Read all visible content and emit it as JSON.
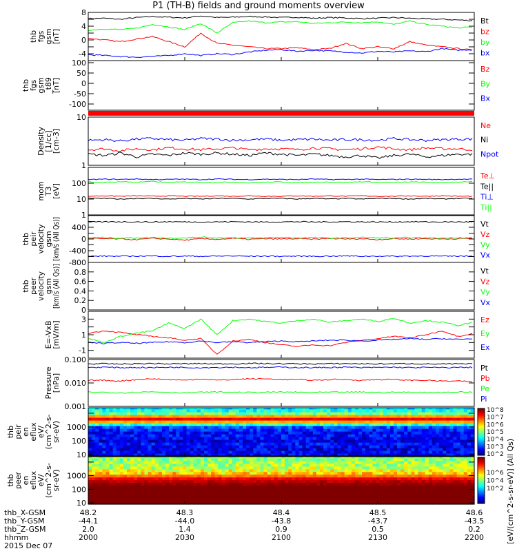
{
  "title": "P1 (TH-B) fields and ground moments overview",
  "chart_data": [
    {
      "type": "line",
      "id": "fgs",
      "ylabel_lines": [
        "thb",
        "fgs",
        "gsm",
        "[nT]"
      ],
      "ylim": [
        -6,
        8
      ],
      "yscale": "linear",
      "yticks": [
        -6,
        -4,
        -2,
        0,
        2,
        4,
        6,
        8
      ],
      "series": [
        {
          "name": "Bt",
          "color": "#000000",
          "values": [
            6.2,
            6.3,
            6.0,
            6.5,
            6.8,
            6.6,
            6.4,
            7.0,
            6.5,
            6.6,
            6.8,
            6.7,
            6.5,
            6.6,
            6.3,
            6.5,
            6.4,
            6.2,
            6.3,
            6.5,
            6.3,
            6.1,
            6.0,
            5.8,
            5.6
          ]
        },
        {
          "name": "bz",
          "color": "#ff0000",
          "values": [
            0.5,
            0.0,
            -0.5,
            0.3,
            1.0,
            -0.5,
            -2.0,
            2.0,
            -1.0,
            -1.5,
            -2.0,
            -2.5,
            -2.5,
            -2.3,
            -2.8,
            -2.5,
            -1.0,
            -2.5,
            -2.0,
            -2.5,
            -0.5,
            -1.5,
            -2.0,
            -2.5,
            -3.0
          ]
        },
        {
          "name": "by",
          "color": "#00ff00",
          "values": [
            2.8,
            3.2,
            3.0,
            3.4,
            4.5,
            3.8,
            3.0,
            4.8,
            2.0,
            5.0,
            5.5,
            5.0,
            5.2,
            5.3,
            4.8,
            5.0,
            5.2,
            5.0,
            5.3,
            4.5,
            5.5,
            4.5,
            4.0,
            3.5,
            3.8
          ]
        },
        {
          "name": "bx",
          "color": "#0000ff",
          "values": [
            -4.3,
            -4.5,
            -4.8,
            -5.0,
            -4.8,
            -4.5,
            -4.0,
            -4.5,
            -4.0,
            -4.2,
            -3.5,
            -3.0,
            -2.8,
            -3.3,
            -3.0,
            -3.2,
            -3.5,
            -3.8,
            -3.3,
            -3.5,
            -3.2,
            -3.4,
            -2.5,
            -3.0,
            -2.8
          ]
        }
      ]
    },
    {
      "type": "line",
      "id": "fgs_t89",
      "ylabel_lines": [
        "thb",
        "fgs",
        "gsm",
        "_t89",
        "[nT]"
      ],
      "ylim": [
        -130,
        110
      ],
      "yscale": "linear",
      "yticks": [
        -100,
        -50,
        0,
        50,
        100
      ],
      "series": [
        {
          "name": "Bz",
          "color": "#ff0000",
          "values": []
        },
        {
          "name": "By",
          "color": "#00ff00",
          "values": []
        },
        {
          "name": "Bx",
          "color": "#0000ff",
          "values": []
        }
      ]
    },
    {
      "type": "line",
      "id": "density",
      "ylabel_lines": [
        "Density",
        "[1/cc]",
        "[cm-3]"
      ],
      "ylim": [
        1,
        10
      ],
      "yscale": "log",
      "yticks": [
        1,
        10
      ],
      "series": [
        {
          "name": "Ne",
          "color": "#ff0000",
          "values": [
            2.1,
            2.2,
            2.0,
            2.2,
            2.1,
            2.3,
            2.2,
            2.1,
            2.2,
            2.3,
            2.1,
            2.2,
            2.2,
            2.1,
            2.3,
            2.2,
            2.1,
            2.2,
            2.4,
            2.2,
            2.1,
            2.3,
            2.2,
            2.2,
            2.1
          ]
        },
        {
          "name": "Ni",
          "color": "#000000",
          "values": [
            1.7,
            1.6,
            1.8,
            1.5,
            1.7,
            1.6,
            1.8,
            1.7,
            1.8,
            1.7,
            1.6,
            1.8,
            1.7,
            1.6,
            1.7,
            1.6,
            1.5,
            1.6,
            1.4,
            1.6,
            1.7,
            1.5,
            1.6,
            1.7,
            1.7
          ]
        },
        {
          "name": "Npot",
          "color": "#0000ff",
          "values": [
            3.3,
            3.4,
            3.2,
            3.5,
            3.6,
            3.4,
            3.3,
            3.6,
            3.5,
            3.3,
            3.4,
            3.5,
            3.3,
            3.4,
            3.5,
            3.3,
            3.4,
            3.4,
            3.3,
            3.6,
            3.4,
            3.3,
            3.4,
            3.5,
            3.5
          ]
        }
      ]
    },
    {
      "type": "line",
      "id": "temps",
      "ylabel_lines": [
        "mom",
        "T3",
        "[eV]"
      ],
      "ylim": [
        1,
        1000
      ],
      "yscale": "log",
      "yticks": [
        1,
        10,
        100,
        1000
      ],
      "series": [
        {
          "name": "Te⊥",
          "color": "#ff0000",
          "values": [
            15,
            16,
            15,
            16,
            15,
            16,
            15,
            15,
            16,
            15,
            16,
            15,
            15,
            16,
            15,
            16,
            15,
            16,
            15,
            15,
            16,
            15,
            16,
            15,
            15
          ]
        },
        {
          "name": "Te||",
          "color": "#000000",
          "values": [
            11,
            11,
            10,
            11,
            11,
            10,
            11,
            10,
            11,
            11,
            10,
            11,
            11,
            10,
            11,
            10,
            11,
            10,
            11,
            11,
            10,
            11,
            10,
            11,
            11
          ]
        },
        {
          "name": "Ti⊥",
          "color": "#0000ff",
          "values": [
            170,
            180,
            175,
            185,
            170,
            175,
            180,
            170,
            185,
            175,
            170,
            180,
            175,
            170,
            185,
            170,
            175,
            180,
            170,
            175,
            180,
            175,
            170,
            180,
            175
          ]
        },
        {
          "name": "Ti||",
          "color": "#00ff00",
          "values": [
            120,
            110,
            125,
            115,
            130,
            110,
            120,
            115,
            110,
            120,
            105,
            115,
            120,
            110,
            115,
            120,
            110,
            125,
            115,
            110,
            120,
            115,
            110,
            120,
            130
          ]
        }
      ]
    },
    {
      "type": "line",
      "id": "peir_velocity",
      "ylabel_lines": [
        "thb",
        "peir",
        "velocity",
        "gsm",
        "[km/s (All Qs)]"
      ],
      "ylim": [
        -800,
        800
      ],
      "yscale": "linear",
      "yticks": [
        -800,
        -600,
        -400,
        -200,
        0,
        200,
        400,
        600,
        800
      ],
      "series": [
        {
          "name": "Vt",
          "color": "#000000",
          "values": [
            580,
            585,
            590,
            585,
            580,
            590,
            585,
            580,
            585,
            590,
            585,
            580,
            585,
            590,
            580,
            585,
            590,
            585,
            580,
            585,
            590,
            585,
            580,
            585,
            585
          ]
        },
        {
          "name": "Vz",
          "color": "#ff0000",
          "values": [
            20,
            10,
            0,
            -20,
            20,
            0,
            -40,
            10,
            -10,
            20,
            -10,
            10,
            0,
            10,
            -10,
            20,
            0,
            10,
            -20,
            10,
            0,
            10,
            0,
            10,
            20
          ]
        },
        {
          "name": "Vy",
          "color": "#00ff00",
          "values": [
            40,
            50,
            30,
            40,
            50,
            30,
            40,
            60,
            40,
            50,
            30,
            40,
            60,
            40,
            50,
            30,
            40,
            50,
            40,
            30,
            50,
            40,
            30,
            50,
            40
          ]
        },
        {
          "name": "Vx",
          "color": "#0000ff",
          "values": [
            -590,
            -585,
            -590,
            -585,
            -580,
            -590,
            -585,
            -590,
            -585,
            -580,
            -590,
            -585,
            -590,
            -585,
            -590,
            -585,
            -580,
            -590,
            -585,
            -590,
            -585,
            -580,
            -590,
            -585,
            -585
          ]
        }
      ]
    },
    {
      "type": "line",
      "id": "peer_velocity",
      "ylabel_lines": [
        "thb",
        "peer",
        "velocity",
        "gsm",
        "[km/s (All Qs)]"
      ],
      "ylim": [
        0,
        1
      ],
      "yscale": "linear",
      "yticks": [
        0.0,
        0.2,
        0.4,
        0.6,
        0.8,
        1.0
      ],
      "series": [
        {
          "name": "Vt",
          "color": "#000000",
          "values": []
        },
        {
          "name": "Vz",
          "color": "#ff0000",
          "values": []
        },
        {
          "name": "Vy",
          "color": "#00ff00",
          "values": []
        },
        {
          "name": "Vx",
          "color": "#0000ff",
          "values": []
        }
      ]
    },
    {
      "type": "line",
      "id": "efield",
      "ylabel_lines": [
        "E=-VxB",
        "[mV/m]"
      ],
      "ylim": [
        -2,
        4
      ],
      "yscale": "linear",
      "yticks": [
        -2,
        -1,
        0,
        1,
        2,
        3,
        4
      ],
      "series": [
        {
          "name": "Ez",
          "color": "#ff0000",
          "values": [
            1.2,
            1.5,
            1.3,
            1.0,
            0.8,
            0.6,
            0.3,
            0.5,
            -1.5,
            0.2,
            0.4,
            0.0,
            -0.3,
            -0.5,
            -0.3,
            -0.4,
            0.0,
            0.3,
            0.5,
            0.8,
            0.6,
            1.0,
            1.5,
            0.8,
            1.2
          ]
        },
        {
          "name": "Ey",
          "color": "#00ff00",
          "values": [
            0.5,
            0.0,
            0.8,
            1.2,
            1.5,
            2.5,
            1.8,
            3.0,
            1.0,
            2.8,
            3.0,
            2.7,
            2.5,
            2.8,
            3.0,
            2.6,
            2.8,
            3.0,
            2.7,
            3.1,
            2.5,
            2.8,
            2.6,
            2.2,
            2.6
          ]
        },
        {
          "name": "Ex",
          "color": "#0000ff",
          "values": [
            0.0,
            -0.1,
            0.0,
            -0.1,
            0.0,
            0.1,
            0.0,
            0.2,
            0.0,
            0.1,
            0.0,
            0.1,
            0.2,
            0.1,
            0.2,
            0.3,
            0.3,
            0.2,
            0.3,
            0.4,
            0.5,
            0.4,
            0.5,
            0.4,
            0.5
          ]
        }
      ]
    },
    {
      "type": "line",
      "id": "pressure",
      "ylabel_lines": [
        "Pressure",
        "[nPa]"
      ],
      "ylim": [
        0.001,
        0.1
      ],
      "yscale": "log",
      "yticks": [
        0.001,
        0.01,
        0.1
      ],
      "ytick_labels": [
        "0.001",
        "0.010",
        "0.100"
      ],
      "series": [
        {
          "name": "Pt",
          "color": "#000000",
          "values": [
            0.065,
            0.066,
            0.064,
            0.066,
            0.068,
            0.065,
            0.066,
            0.067,
            0.065,
            0.066,
            0.068,
            0.067,
            0.066,
            0.066,
            0.065,
            0.066,
            0.067,
            0.066,
            0.065,
            0.066,
            0.067,
            0.065,
            0.064,
            0.065,
            0.064
          ]
        },
        {
          "name": "Pb",
          "color": "#ff0000",
          "values": [
            0.013,
            0.013,
            0.012,
            0.014,
            0.015,
            0.014,
            0.013,
            0.015,
            0.013,
            0.014,
            0.015,
            0.015,
            0.014,
            0.014,
            0.013,
            0.014,
            0.014,
            0.013,
            0.014,
            0.014,
            0.013,
            0.013,
            0.012,
            0.012,
            0.011
          ]
        },
        {
          "name": "Pe",
          "color": "#00ff00",
          "values": [
            0.004,
            0.004,
            0.0038,
            0.004,
            0.0042,
            0.004,
            0.0038,
            0.004,
            0.0041,
            0.004,
            0.0039,
            0.004,
            0.0041,
            0.004,
            0.0039,
            0.004,
            0.004,
            0.0041,
            0.0039,
            0.004,
            0.004,
            0.0039,
            0.004,
            0.0041,
            0.004
          ]
        },
        {
          "name": "Pi",
          "color": "#0000ff",
          "values": [
            0.046,
            0.047,
            0.045,
            0.046,
            0.045,
            0.047,
            0.046,
            0.045,
            0.046,
            0.047,
            0.045,
            0.046,
            0.047,
            0.046,
            0.045,
            0.046,
            0.047,
            0.045,
            0.046,
            0.047,
            0.045,
            0.046,
            0.045,
            0.046,
            0.046
          ]
        }
      ]
    },
    {
      "type": "heatmap",
      "id": "peir_en_eflux",
      "ylabel_lines": [
        "thb",
        "peir",
        "en",
        "eflux",
        "eV/",
        "(cm^2-s-",
        "sr-eV)"
      ],
      "ylim": [
        8,
        25000
      ],
      "yscale": "log",
      "yticks": [
        10,
        100,
        1000,
        10000
      ],
      "energies_eV": [
        10,
        16,
        25,
        40,
        63,
        100,
        160,
        250,
        400,
        630,
        1000,
        1600,
        2500,
        4000,
        6300,
        10000,
        16000,
        25000
      ],
      "log_eflux": [
        2.6,
        2.7,
        2.6,
        2.7,
        2.8,
        2.6,
        2.7,
        2.8,
        2.7,
        2.9,
        3.2,
        4.5,
        6.2,
        7.3,
        6.3,
        4.9,
        4.4,
        4.1
      ],
      "zlim": [
        100,
        100000000
      ],
      "ztick_labels": [
        "10^2",
        "10^3",
        "10^4",
        "10^5",
        "10^6",
        "10^7",
        "10^8"
      ]
    },
    {
      "type": "heatmap",
      "id": "peer_en_eflux",
      "ylabel_lines": [
        "thb",
        "peer",
        "en",
        "eflux",
        "eV/",
        "(cm^2-s-",
        "sr-eV)"
      ],
      "ylim": [
        8,
        25000
      ],
      "yscale": "log",
      "yticks": [
        10,
        100,
        1000,
        10000
      ],
      "energies_eV": [
        10,
        16,
        25,
        40,
        63,
        100,
        160,
        250,
        400,
        630,
        1000,
        1600,
        2500,
        4000,
        6300,
        10000,
        16000,
        25000
      ],
      "log_eflux": [
        7.3,
        7.3,
        7.2,
        7.1,
        6.9,
        6.8,
        6.6,
        6.4,
        6.2,
        5.9,
        5.3,
        4.8,
        4.5,
        4.3,
        4.2,
        4.2,
        4.1,
        4.0
      ],
      "zlim": [
        30,
        3000000
      ],
      "ztick_labels": [
        "10^2",
        "10^4",
        "10^6"
      ]
    }
  ],
  "colorbar_label": "[eV/(cm^2-s-sr-eV)] (All Qs)",
  "x_axis": {
    "rows": [
      {
        "label": "thb_X-GSM",
        "values": [
          "48.2",
          "48.3",
          "48.4",
          "48.5",
          "48.6"
        ]
      },
      {
        "label": "thb_Y-GSM",
        "values": [
          "-44.1",
          "-44.0",
          "-43.8",
          "-43.7",
          "-43.5"
        ]
      },
      {
        "label": "thb_Z-GSM",
        "values": [
          "2.0",
          "1.4",
          "0.9",
          "0.5",
          "0.2"
        ]
      },
      {
        "label": "hhmm",
        "values": [
          "2000",
          "2030",
          "2100",
          "2130",
          "2200"
        ]
      }
    ],
    "date": "2015 Dec 07"
  }
}
